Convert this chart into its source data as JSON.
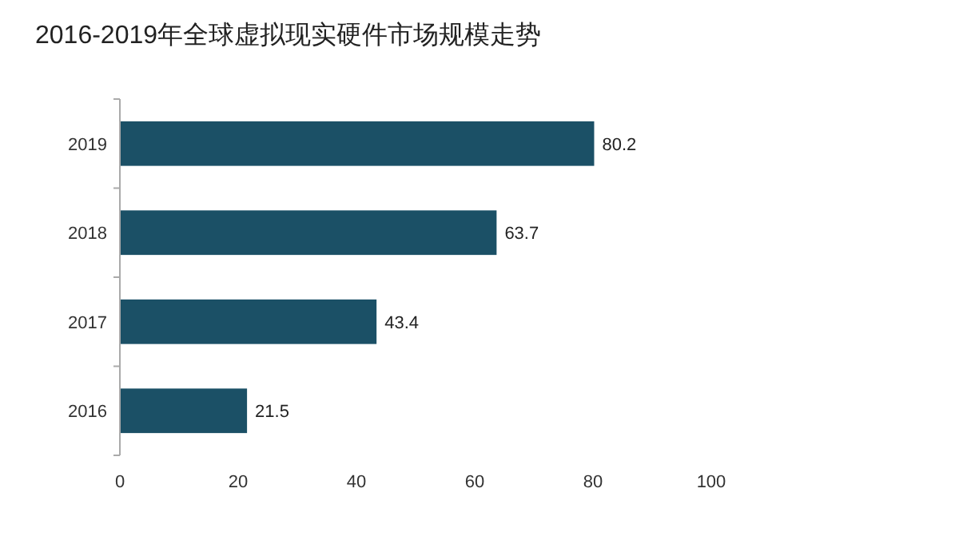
{
  "chart_data": {
    "type": "bar",
    "orientation": "horizontal",
    "title": "2016-2019年全球虚拟现实硬件市场规模走势",
    "categories": [
      "2019",
      "2018",
      "2017",
      "2016"
    ],
    "values": [
      80.2,
      63.7,
      43.4,
      21.5
    ],
    "color": "#1b5066",
    "xlim": [
      0,
      100
    ],
    "xticks": [
      0,
      20,
      40,
      60,
      80,
      100
    ],
    "data_labels": true
  }
}
